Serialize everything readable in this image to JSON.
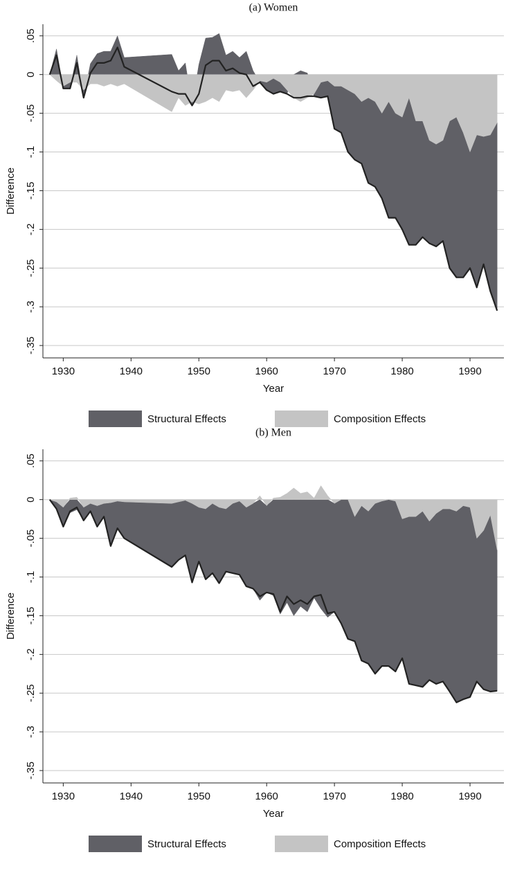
{
  "chart_data": [
    {
      "type": "area",
      "title": "(a) Women",
      "xlabel": "Year",
      "ylabel": "Difference",
      "x": [
        1928,
        1929,
        1930,
        1931,
        1932,
        1933,
        1934,
        1935,
        1936,
        1937,
        1938,
        1939,
        1946,
        1947,
        1948,
        1949,
        1950,
        1951,
        1952,
        1953,
        1954,
        1955,
        1956,
        1957,
        1958,
        1959,
        1960,
        1961,
        1962,
        1963,
        1964,
        1965,
        1966,
        1967,
        1968,
        1969,
        1970,
        1971,
        1972,
        1973,
        1974,
        1975,
        1976,
        1977,
        1978,
        1979,
        1980,
        1981,
        1982,
        1983,
        1984,
        1985,
        1986,
        1987,
        1988,
        1989,
        1990,
        1991,
        1992,
        1993,
        1994
      ],
      "series": [
        {
          "name": "Structural Effects",
          "color": "#606066",
          "values": [
            0,
            0.033,
            -0.003,
            -0.008,
            0.025,
            -0.01,
            0.014,
            0.027,
            0.03,
            0.03,
            0.05,
            0.022,
            0.026,
            0.005,
            0.015,
            -0.005,
            0.013,
            0.047,
            0.048,
            0.053,
            0.025,
            0.03,
            0.022,
            0.03,
            0.005,
            -0.002,
            -0.01,
            -0.02,
            -0.012,
            -0.005,
            0,
            0.005,
            0.002,
            -0.003,
            -0.02,
            -0.02,
            -0.055,
            -0.06,
            -0.08,
            -0.085,
            -0.08,
            -0.11,
            -0.11,
            -0.11,
            -0.15,
            -0.135,
            -0.145,
            -0.19,
            -0.16,
            -0.15,
            -0.133,
            -0.132,
            -0.13,
            -0.19,
            -0.207,
            -0.187,
            -0.15,
            -0.197,
            -0.165,
            -0.202,
            -0.243
          ]
        },
        {
          "name": "Composition Effects",
          "color": "#c4c4c4",
          "values": [
            0,
            -0.008,
            -0.015,
            -0.01,
            -0.01,
            -0.02,
            -0.012,
            -0.012,
            -0.015,
            -0.012,
            -0.015,
            -0.012,
            -0.048,
            -0.03,
            -0.04,
            -0.035,
            -0.038,
            -0.035,
            -0.03,
            -0.035,
            -0.02,
            -0.022,
            -0.02,
            -0.03,
            -0.02,
            -0.008,
            -0.01,
            -0.005,
            -0.01,
            -0.02,
            -0.03,
            -0.035,
            -0.03,
            -0.025,
            -0.01,
            -0.008,
            -0.015,
            -0.015,
            -0.02,
            -0.025,
            -0.035,
            -0.03,
            -0.035,
            -0.05,
            -0.035,
            -0.05,
            -0.055,
            -0.03,
            -0.06,
            -0.06,
            -0.085,
            -0.09,
            -0.085,
            -0.06,
            -0.055,
            -0.075,
            -0.1,
            -0.078,
            -0.08,
            -0.078,
            -0.062
          ]
        }
      ],
      "xlim": [
        1927,
        1995
      ],
      "xticks": [
        1930,
        1940,
        1950,
        1960,
        1970,
        1980,
        1990
      ],
      "ylim": [
        -0.366,
        0.065
      ],
      "yticks": [
        {
          "value": 0.05,
          "label": ".05"
        },
        0,
        {
          "value": -0.05,
          "label": "-.05"
        },
        {
          "value": -0.1,
          "label": "-.1"
        },
        {
          "value": -0.15,
          "label": "-.15"
        },
        {
          "value": -0.2,
          "label": "-.2"
        },
        {
          "value": -0.25,
          "label": "-.25"
        },
        {
          "value": -0.3,
          "label": "-.3"
        },
        {
          "value": -0.35,
          "label": "-.35"
        }
      ],
      "grid": true,
      "line_color": "#222222"
    },
    {
      "type": "area",
      "title": "(b) Men",
      "xlabel": "Year",
      "ylabel": "Difference",
      "x": [
        1928,
        1929,
        1930,
        1931,
        1932,
        1933,
        1934,
        1935,
        1936,
        1937,
        1938,
        1939,
        1946,
        1947,
        1948,
        1949,
        1950,
        1951,
        1952,
        1953,
        1954,
        1955,
        1956,
        1957,
        1958,
        1959,
        1960,
        1961,
        1962,
        1963,
        1964,
        1965,
        1966,
        1967,
        1968,
        1969,
        1970,
        1971,
        1972,
        1973,
        1974,
        1975,
        1976,
        1977,
        1978,
        1979,
        1980,
        1981,
        1982,
        1983,
        1984,
        1985,
        1986,
        1987,
        1988,
        1989,
        1990,
        1991,
        1992,
        1993,
        1994
      ],
      "series": [
        {
          "name": "Structural Effects",
          "color": "#606066",
          "values": [
            0,
            -0.009,
            -0.025,
            -0.017,
            -0.013,
            -0.017,
            -0.01,
            -0.027,
            -0.017,
            -0.056,
            -0.035,
            -0.047,
            -0.082,
            -0.075,
            -0.071,
            -0.102,
            -0.07,
            -0.091,
            -0.09,
            -0.098,
            -0.081,
            -0.09,
            -0.095,
            -0.102,
            -0.11,
            -0.13,
            -0.112,
            -0.124,
            -0.148,
            -0.133,
            -0.15,
            -0.138,
            -0.145,
            -0.127,
            -0.141,
            -0.152,
            -0.14,
            -0.16,
            -0.18,
            -0.161,
            -0.2,
            -0.197,
            -0.22,
            -0.213,
            -0.215,
            -0.22,
            -0.18,
            -0.216,
            -0.218,
            -0.227,
            -0.205,
            -0.22,
            -0.223,
            -0.236,
            -0.247,
            -0.25,
            -0.245,
            -0.185,
            -0.205,
            -0.228,
            -0.182
          ]
        },
        {
          "name": "Composition Effects",
          "color": "#c4c4c4",
          "values": [
            0,
            -0.003,
            -0.01,
            0.002,
            0.003,
            -0.01,
            -0.005,
            -0.008,
            -0.005,
            -0.004,
            -0.002,
            -0.003,
            -0.005,
            -0.003,
            -0.001,
            -0.005,
            -0.01,
            -0.012,
            -0.005,
            -0.01,
            -0.012,
            -0.005,
            -0.002,
            -0.01,
            -0.005,
            0.005,
            -0.008,
            0.002,
            0.003,
            0.008,
            0.015,
            0.008,
            0.01,
            0.002,
            0.018,
            0.005,
            -0.005,
            0,
            0,
            -0.022,
            -0.008,
            -0.015,
            -0.005,
            -0.002,
            0,
            -0.002,
            -0.025,
            -0.022,
            -0.022,
            -0.015,
            -0.028,
            -0.018,
            -0.012,
            -0.012,
            -0.015,
            -0.008,
            -0.01,
            -0.05,
            -0.04,
            -0.02,
            -0.065
          ]
        }
      ],
      "xlim": [
        1927,
        1995
      ],
      "xticks": [
        1930,
        1940,
        1950,
        1960,
        1970,
        1980,
        1990
      ],
      "ylim": [
        -0.366,
        0.065
      ],
      "yticks": [
        {
          "value": 0.05,
          "label": ".05"
        },
        0,
        {
          "value": -0.05,
          "label": "-.05"
        },
        {
          "value": -0.1,
          "label": "-.1"
        },
        {
          "value": -0.15,
          "label": "-.15"
        },
        {
          "value": -0.2,
          "label": "-.2"
        },
        {
          "value": -0.25,
          "label": "-.25"
        },
        {
          "value": -0.3,
          "label": "-.3"
        },
        {
          "value": -0.35,
          "label": "-.35"
        }
      ],
      "grid": true,
      "line_color": "#222222"
    }
  ]
}
